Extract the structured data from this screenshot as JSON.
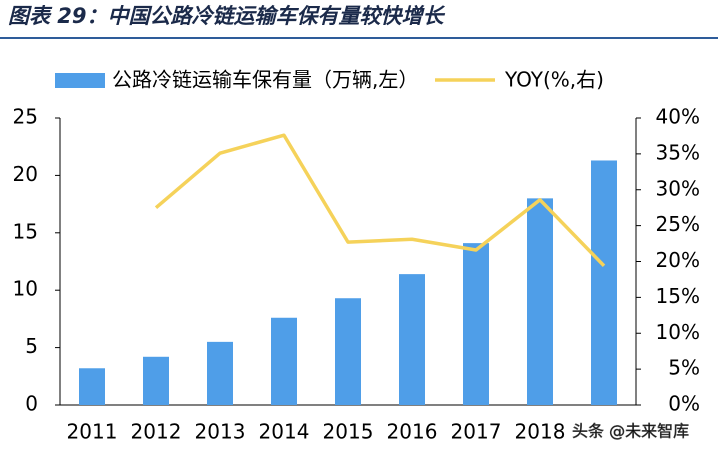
{
  "chart_data": {
    "type": "bar",
    "title": "图表 29：中国公路冷链运输车保有量较快增长",
    "categories": [
      "2011",
      "2012",
      "2013",
      "2014",
      "2015",
      "2016",
      "2017",
      "2018",
      null
    ],
    "series": [
      {
        "name": "公路冷链运输车保有量（万辆,左）",
        "type": "bar",
        "color": "#4f9ee8",
        "values": [
          3.2,
          4.2,
          5.5,
          7.6,
          9.3,
          11.4,
          14.1,
          18.0,
          21.3
        ]
      },
      {
        "name": "YOY(%,右)",
        "type": "line",
        "axis": "y2",
        "color": "#f5d25a",
        "values": [
          null,
          27.5,
          35.1,
          37.6,
          22.7,
          23.1,
          21.6,
          28.6,
          19.4
        ]
      }
    ],
    "ylim": [
      0,
      25
    ],
    "yticks": [
      0,
      5,
      10,
      15,
      20,
      25
    ],
    "y2lim": [
      0,
      40
    ],
    "y2ticks": [
      {
        "value": 0,
        "label": "0%"
      },
      {
        "value": 5,
        "label": "5%"
      },
      {
        "value": 10,
        "label": "10%"
      },
      {
        "value": 15,
        "label": "15%"
      },
      {
        "value": 20,
        "label": "20%"
      },
      {
        "value": 25,
        "label": "25%"
      },
      {
        "value": 30,
        "label": "30%"
      },
      {
        "value": 35,
        "label": "35%"
      },
      {
        "value": 40,
        "label": "40%"
      }
    ],
    "legend": "top",
    "watermark": "头条 @未来智库"
  }
}
